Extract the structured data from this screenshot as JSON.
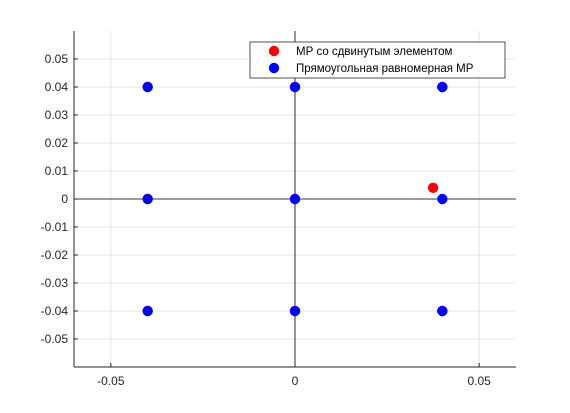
{
  "chart_data": {
    "type": "scatter",
    "title": "",
    "xlabel": "",
    "ylabel": "",
    "xlim": [
      -0.06,
      0.06
    ],
    "ylim": [
      -0.06,
      0.06
    ],
    "xticks": [
      -0.05,
      0,
      0.05
    ],
    "xtick_labels": [
      "-0.05",
      "0",
      "0.05"
    ],
    "yticks": [
      -0.05,
      -0.04,
      -0.03,
      -0.02,
      -0.01,
      0,
      0.01,
      0.02,
      0.03,
      0.04,
      0.05
    ],
    "ytick_labels": [
      "-0.05",
      "-0.04",
      "-0.03",
      "-0.02",
      "-0.01",
      "0",
      "0.01",
      "0.02",
      "0.03",
      "0.04",
      "0.05"
    ],
    "grid": true,
    "axes_lines_through_origin": true,
    "legend_position": "top-right",
    "series": [
      {
        "name": "МР со сдвинутым элементом",
        "color": "#ff0000",
        "marker": "circle",
        "points": [
          {
            "x": -0.04,
            "y": 0.04
          },
          {
            "x": 0,
            "y": 0.04
          },
          {
            "x": 0.04,
            "y": 0.04
          },
          {
            "x": -0.04,
            "y": 0
          },
          {
            "x": 0,
            "y": 0
          },
          {
            "x": 0.0375,
            "y": 0.004
          },
          {
            "x": -0.04,
            "y": -0.04
          },
          {
            "x": 0,
            "y": -0.04
          },
          {
            "x": 0.04,
            "y": -0.04
          }
        ]
      },
      {
        "name": "Прямоугольная равномерная МР",
        "color": "#0000ff",
        "marker": "circle",
        "points": [
          {
            "x": -0.04,
            "y": 0.04
          },
          {
            "x": 0,
            "y": 0.04
          },
          {
            "x": 0.04,
            "y": 0.04
          },
          {
            "x": -0.04,
            "y": 0
          },
          {
            "x": 0,
            "y": 0
          },
          {
            "x": 0.04,
            "y": 0
          },
          {
            "x": -0.04,
            "y": -0.04
          },
          {
            "x": 0,
            "y": -0.04
          },
          {
            "x": 0.04,
            "y": -0.04
          }
        ]
      }
    ]
  }
}
